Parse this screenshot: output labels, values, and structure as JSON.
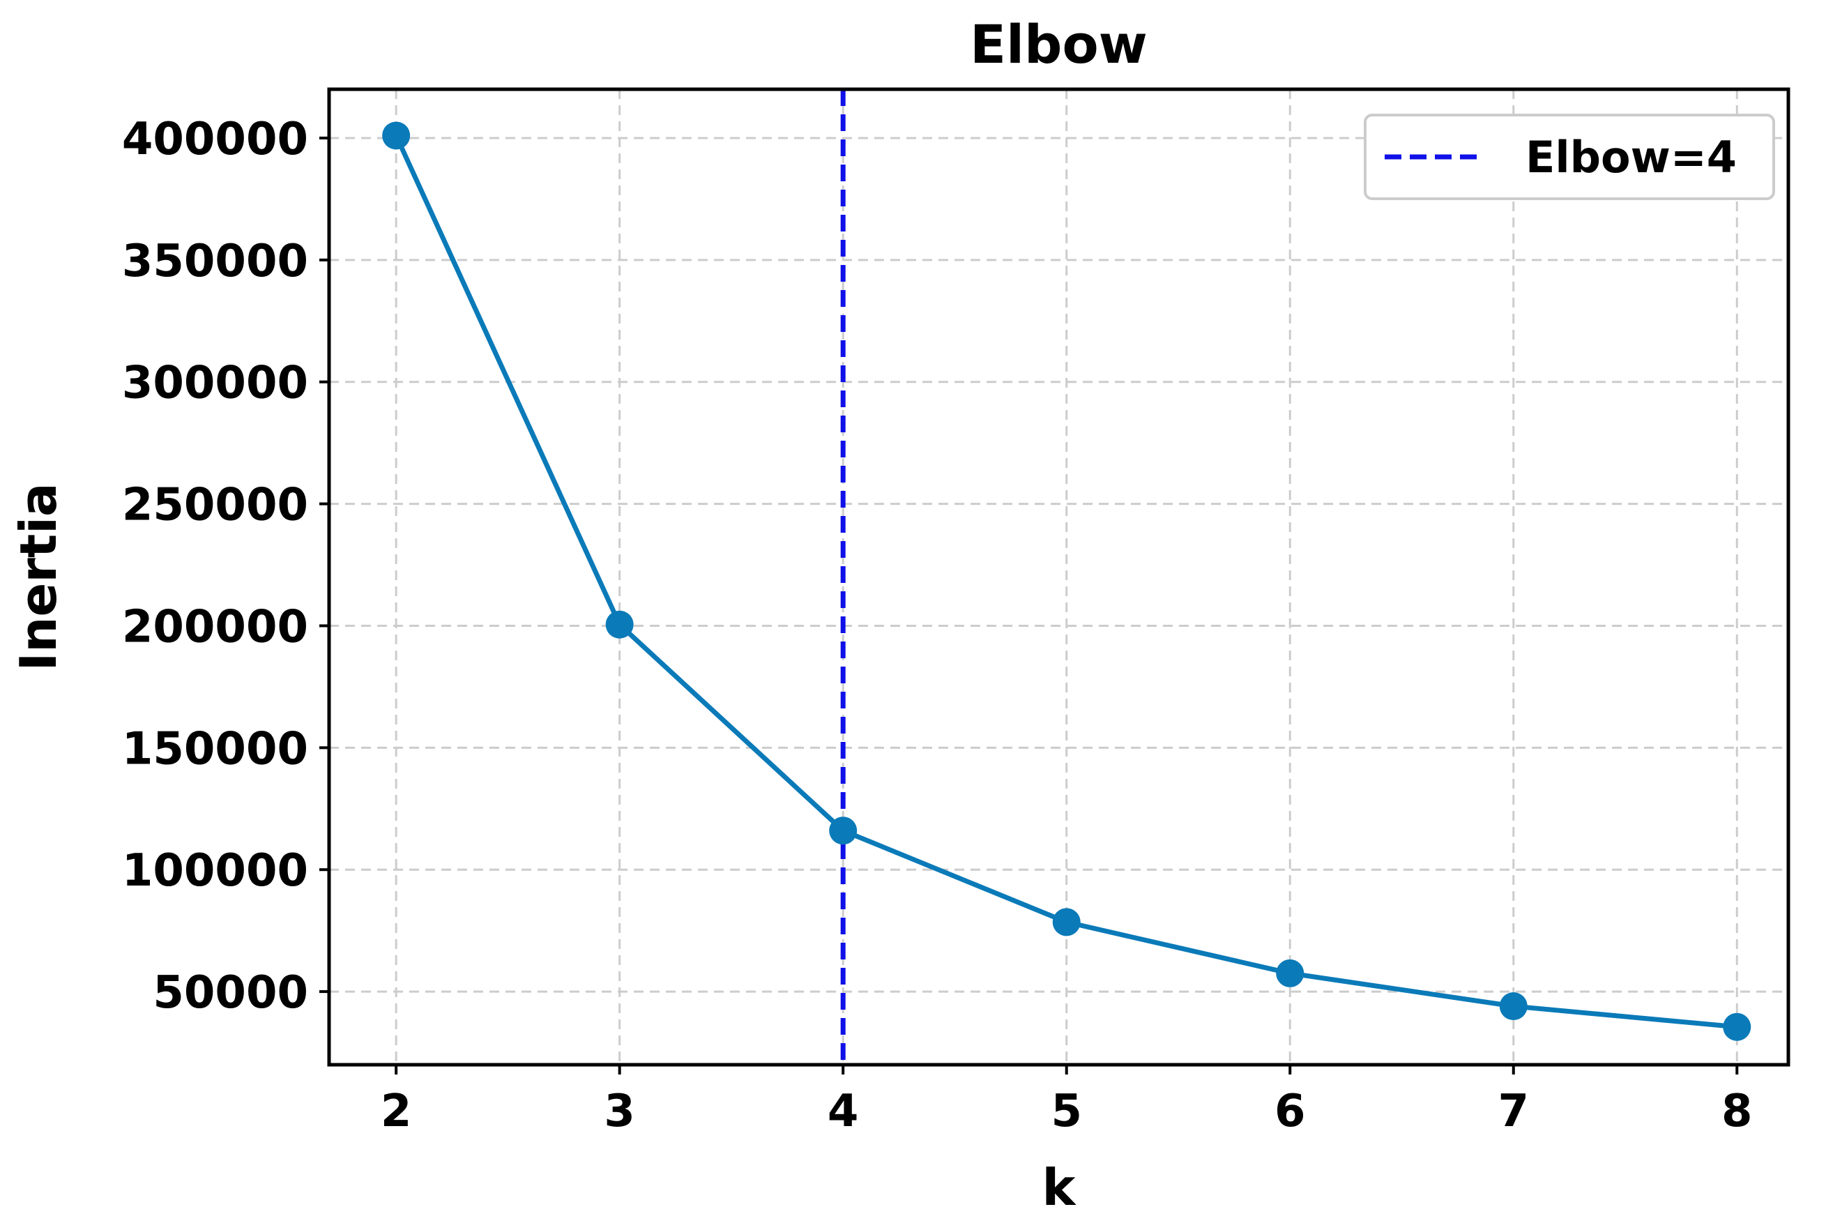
{
  "chart_data": {
    "type": "line",
    "title": "Elbow",
    "xlabel": "k",
    "ylabel": "Inertia",
    "x": [
      2,
      3,
      4,
      5,
      6,
      7,
      8
    ],
    "xlim": [
      1.7,
      8.23
    ],
    "ylim": [
      20000,
      420000
    ],
    "x_ticks": [
      2,
      3,
      4,
      5,
      6,
      7,
      8
    ],
    "y_ticks": [
      50000,
      100000,
      150000,
      200000,
      250000,
      300000,
      350000,
      400000
    ],
    "grid": true,
    "series": [
      {
        "values": [
          401000,
          200500,
          116000,
          78500,
          57500,
          44000,
          35500
        ],
        "color": "#0a7ab8",
        "marker": "circle"
      }
    ],
    "vlines": [
      {
        "x": 4,
        "color": "#1010e8",
        "style": "dashed",
        "label": "Elbow=4"
      }
    ],
    "legend": {
      "placement": "top-right",
      "entries": [
        "Elbow=4"
      ]
    }
  }
}
